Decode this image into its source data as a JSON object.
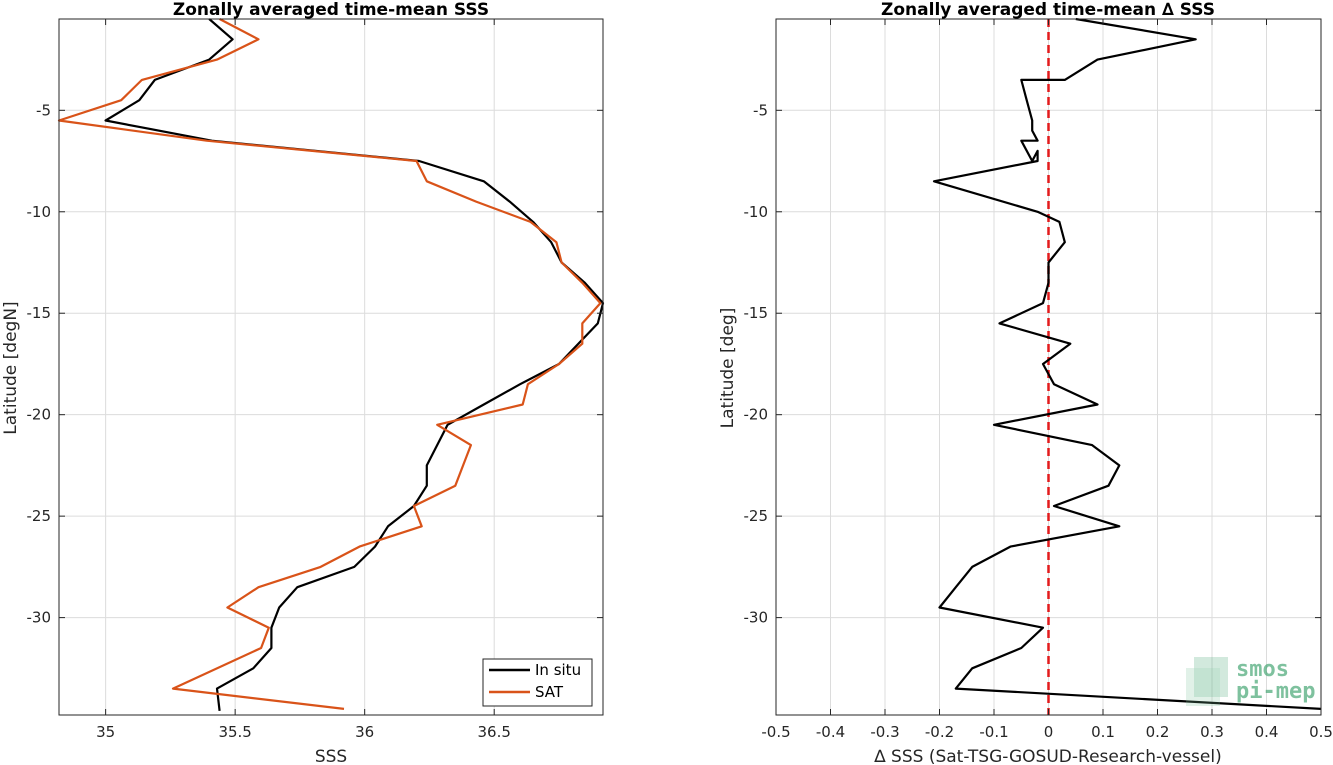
{
  "chart_data": [
    {
      "type": "line",
      "title": "Zonally averaged time-mean SSS",
      "xlabel": "SSS",
      "ylabel": "Latitude [degN]",
      "xlim": [
        34.82,
        36.92
      ],
      "ylim": [
        -34.8,
        -0.5
      ],
      "xticks": [
        35,
        35.5,
        36,
        36.5
      ],
      "xtick_labels": [
        "35",
        "35.5",
        "36",
        "36.5"
      ],
      "yticks": [
        -5,
        -10,
        -15,
        -20,
        -25,
        -30
      ],
      "ytick_labels": [
        "-5",
        "-10",
        "-15",
        "-20",
        "-25",
        "-30"
      ],
      "grid": true,
      "legend_position": "bottom-right",
      "series": [
        {
          "name": "In situ",
          "color": "#000000",
          "points": [
            [
              35.4,
              -0.5
            ],
            [
              35.49,
              -1.5
            ],
            [
              35.4,
              -2.5
            ],
            [
              35.19,
              -3.5
            ],
            [
              35.13,
              -4.5
            ],
            [
              35.0,
              -5.5
            ],
            [
              35.41,
              -6.5
            ],
            [
              36.21,
              -7.5
            ],
            [
              36.46,
              -8.5
            ],
            [
              36.56,
              -9.5
            ],
            [
              36.65,
              -10.5
            ],
            [
              36.72,
              -11.5
            ],
            [
              36.76,
              -12.5
            ],
            [
              36.85,
              -13.5
            ],
            [
              36.92,
              -14.5
            ],
            [
              36.9,
              -15.5
            ],
            [
              36.75,
              -17.5
            ],
            [
              36.6,
              -18.5
            ],
            [
              36.46,
              -19.5
            ],
            [
              36.32,
              -20.5
            ],
            [
              36.24,
              -22.5
            ],
            [
              36.24,
              -23.5
            ],
            [
              36.19,
              -24.5
            ],
            [
              36.09,
              -25.5
            ],
            [
              36.04,
              -26.5
            ],
            [
              35.96,
              -27.5
            ],
            [
              35.74,
              -28.5
            ],
            [
              35.67,
              -29.5
            ],
            [
              35.64,
              -30.5
            ],
            [
              35.64,
              -31.5
            ],
            [
              35.57,
              -32.5
            ],
            [
              35.43,
              -33.5
            ],
            [
              35.44,
              -34.6
            ]
          ]
        },
        {
          "name": "SAT",
          "color": "#D95319",
          "points": [
            [
              35.44,
              -0.5
            ],
            [
              35.59,
              -1.5
            ],
            [
              35.43,
              -2.5
            ],
            [
              35.14,
              -3.5
            ],
            [
              35.06,
              -4.5
            ],
            [
              34.82,
              -5.5
            ],
            [
              35.39,
              -6.5
            ],
            [
              36.2,
              -7.5
            ],
            [
              36.24,
              -8.5
            ],
            [
              36.43,
              -9.5
            ],
            [
              36.64,
              -10.5
            ],
            [
              36.74,
              -11.5
            ],
            [
              36.76,
              -12.5
            ],
            [
              36.84,
              -13.5
            ],
            [
              36.91,
              -14.5
            ],
            [
              36.84,
              -15.5
            ],
            [
              36.84,
              -16.5
            ],
            [
              36.75,
              -17.5
            ],
            [
              36.63,
              -18.5
            ],
            [
              36.61,
              -19.5
            ],
            [
              36.28,
              -20.5
            ],
            [
              36.41,
              -21.5
            ],
            [
              36.38,
              -22.5
            ],
            [
              36.35,
              -23.5
            ],
            [
              36.19,
              -24.5
            ],
            [
              36.22,
              -25.5
            ],
            [
              35.98,
              -26.5
            ],
            [
              35.83,
              -27.5
            ],
            [
              35.59,
              -28.5
            ],
            [
              35.47,
              -29.5
            ],
            [
              35.63,
              -30.5
            ],
            [
              35.6,
              -31.5
            ],
            [
              35.26,
              -33.5
            ],
            [
              35.92,
              -34.5
            ]
          ]
        }
      ]
    },
    {
      "type": "line",
      "title": "Zonally averaged time-mean ∆ SSS",
      "xlabel": "∆ SSS (Sat-TSG-GOSUD-Research-vessel)",
      "ylabel": "Latitude [deg]",
      "xlim": [
        -0.5,
        0.5
      ],
      "ylim": [
        -34.8,
        -0.5
      ],
      "xticks": [
        -0.5,
        -0.4,
        -0.3,
        -0.2,
        -0.1,
        0,
        0.1,
        0.2,
        0.3,
        0.4,
        0.5
      ],
      "xtick_labels": [
        "-0.5",
        "-0.4",
        "-0.3",
        "-0.2",
        "-0.1",
        "0",
        "0.1",
        "0.2",
        "0.3",
        "0.4",
        "0.5"
      ],
      "yticks": [
        -5,
        -10,
        -15,
        -20,
        -25,
        -30
      ],
      "ytick_labels": [
        "-5",
        "-10",
        "-15",
        "-20",
        "-25",
        "-30"
      ],
      "grid": true,
      "reference_line": {
        "x": 0,
        "color": "#E31A1C",
        "style": "dashed"
      },
      "series": [
        {
          "color": "#000000",
          "points": [
            [
              0.05,
              -0.5
            ],
            [
              0.27,
              -1.5
            ],
            [
              0.09,
              -2.5
            ],
            [
              0.03,
              -3.5
            ],
            [
              -0.05,
              -3.5
            ],
            [
              -0.04,
              -4.5
            ],
            [
              -0.03,
              -5.5
            ],
            [
              -0.03,
              -6.0
            ],
            [
              -0.02,
              -6.5
            ],
            [
              -0.05,
              -6.5
            ],
            [
              -0.03,
              -7.5
            ],
            [
              -0.02,
              -7.0
            ],
            [
              -0.02,
              -7.5
            ],
            [
              -0.21,
              -8.5
            ],
            [
              -0.02,
              -10.0
            ],
            [
              0.02,
              -10.5
            ],
            [
              0.03,
              -11.5
            ],
            [
              0.0,
              -12.5
            ],
            [
              0.0,
              -13.5
            ],
            [
              -0.01,
              -14.5
            ],
            [
              -0.09,
              -15.5
            ],
            [
              0.04,
              -16.5
            ],
            [
              -0.01,
              -17.5
            ],
            [
              0.01,
              -18.5
            ],
            [
              0.09,
              -19.5
            ],
            [
              -0.1,
              -20.5
            ],
            [
              0.08,
              -21.5
            ],
            [
              0.13,
              -22.5
            ],
            [
              0.11,
              -23.5
            ],
            [
              0.01,
              -24.5
            ],
            [
              0.13,
              -25.5
            ],
            [
              -0.07,
              -26.5
            ],
            [
              -0.14,
              -27.5
            ],
            [
              -0.17,
              -28.5
            ],
            [
              -0.2,
              -29.5
            ],
            [
              -0.01,
              -30.5
            ],
            [
              -0.05,
              -31.5
            ],
            [
              -0.14,
              -32.5
            ],
            [
              -0.17,
              -33.5
            ],
            [
              0.5,
              -34.5
            ]
          ]
        }
      ]
    }
  ],
  "legend": {
    "entries": [
      "In situ",
      "SAT"
    ]
  },
  "logo": {
    "line1": "smos",
    "line2": "pi-mep",
    "color": "#3aa06b"
  }
}
